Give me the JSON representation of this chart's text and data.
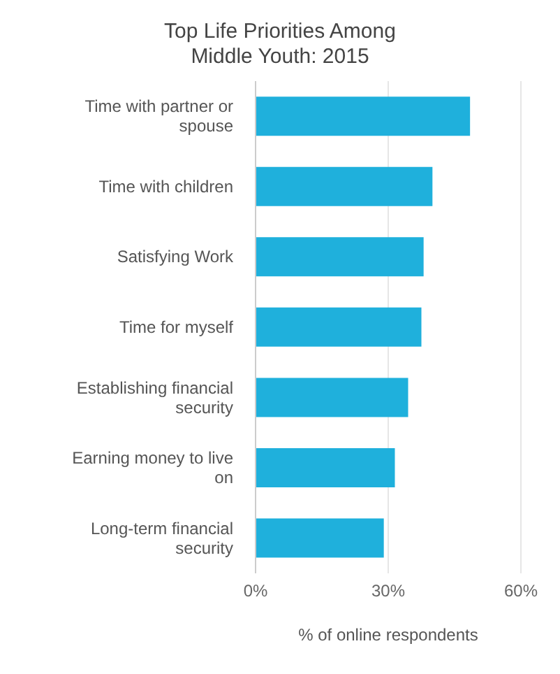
{
  "chart_data": {
    "type": "bar",
    "orientation": "horizontal",
    "title": "Top Life Priorities Among Middle Youth: 2015",
    "xlabel": "% of online respondents",
    "categories": [
      "Time with partner or spouse",
      "Time with children",
      "Satisfying Work",
      "Time for myself",
      "Establishing financial security",
      "Earning money to live on",
      "Long-term financial security"
    ],
    "values": [
      48.5,
      40,
      38,
      37.5,
      34.5,
      31.5,
      29
    ],
    "color": "#1fb0dc",
    "xlim": [
      0,
      60
    ],
    "xticks": [
      {
        "value": 0,
        "label": "0%"
      },
      {
        "value": 30,
        "label": "30%"
      },
      {
        "value": 60,
        "label": "60%"
      }
    ],
    "grid": "x"
  }
}
